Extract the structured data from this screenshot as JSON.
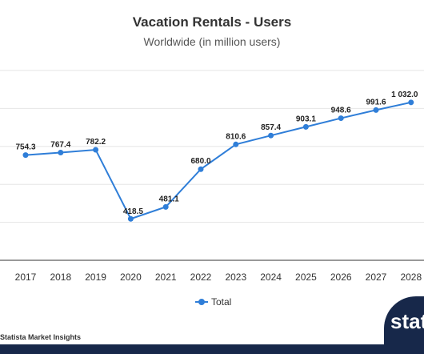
{
  "chart_data": {
    "type": "line",
    "title": "Vacation Rentals - Users",
    "subtitle": "Worldwide (in million users)",
    "categories": [
      "2017",
      "2018",
      "2019",
      "2020",
      "2021",
      "2022",
      "2023",
      "2024",
      "2025",
      "2026",
      "2027",
      "2028"
    ],
    "series": [
      {
        "name": "Total",
        "values": [
          754.3,
          767.4,
          782.2,
          418.5,
          481.1,
          680.0,
          810.6,
          857.4,
          903.1,
          948.6,
          991.6,
          1032.0
        ],
        "labels": [
          "754.3",
          "767.4",
          "782.2",
          "418.5",
          "481.1",
          "680.0",
          "810.6",
          "857.4",
          "903.1",
          "948.6",
          "991.6",
          "1 032.0"
        ]
      }
    ],
    "ylim": [
      200,
      1200
    ],
    "grid": true,
    "legend": "bottom-center",
    "colors": {
      "line": "#2f7ed8",
      "grid": "#e6e6e6",
      "axis": "#333333"
    }
  },
  "footer": {
    "source": "Statista Market Insights",
    "logo": "statista"
  }
}
